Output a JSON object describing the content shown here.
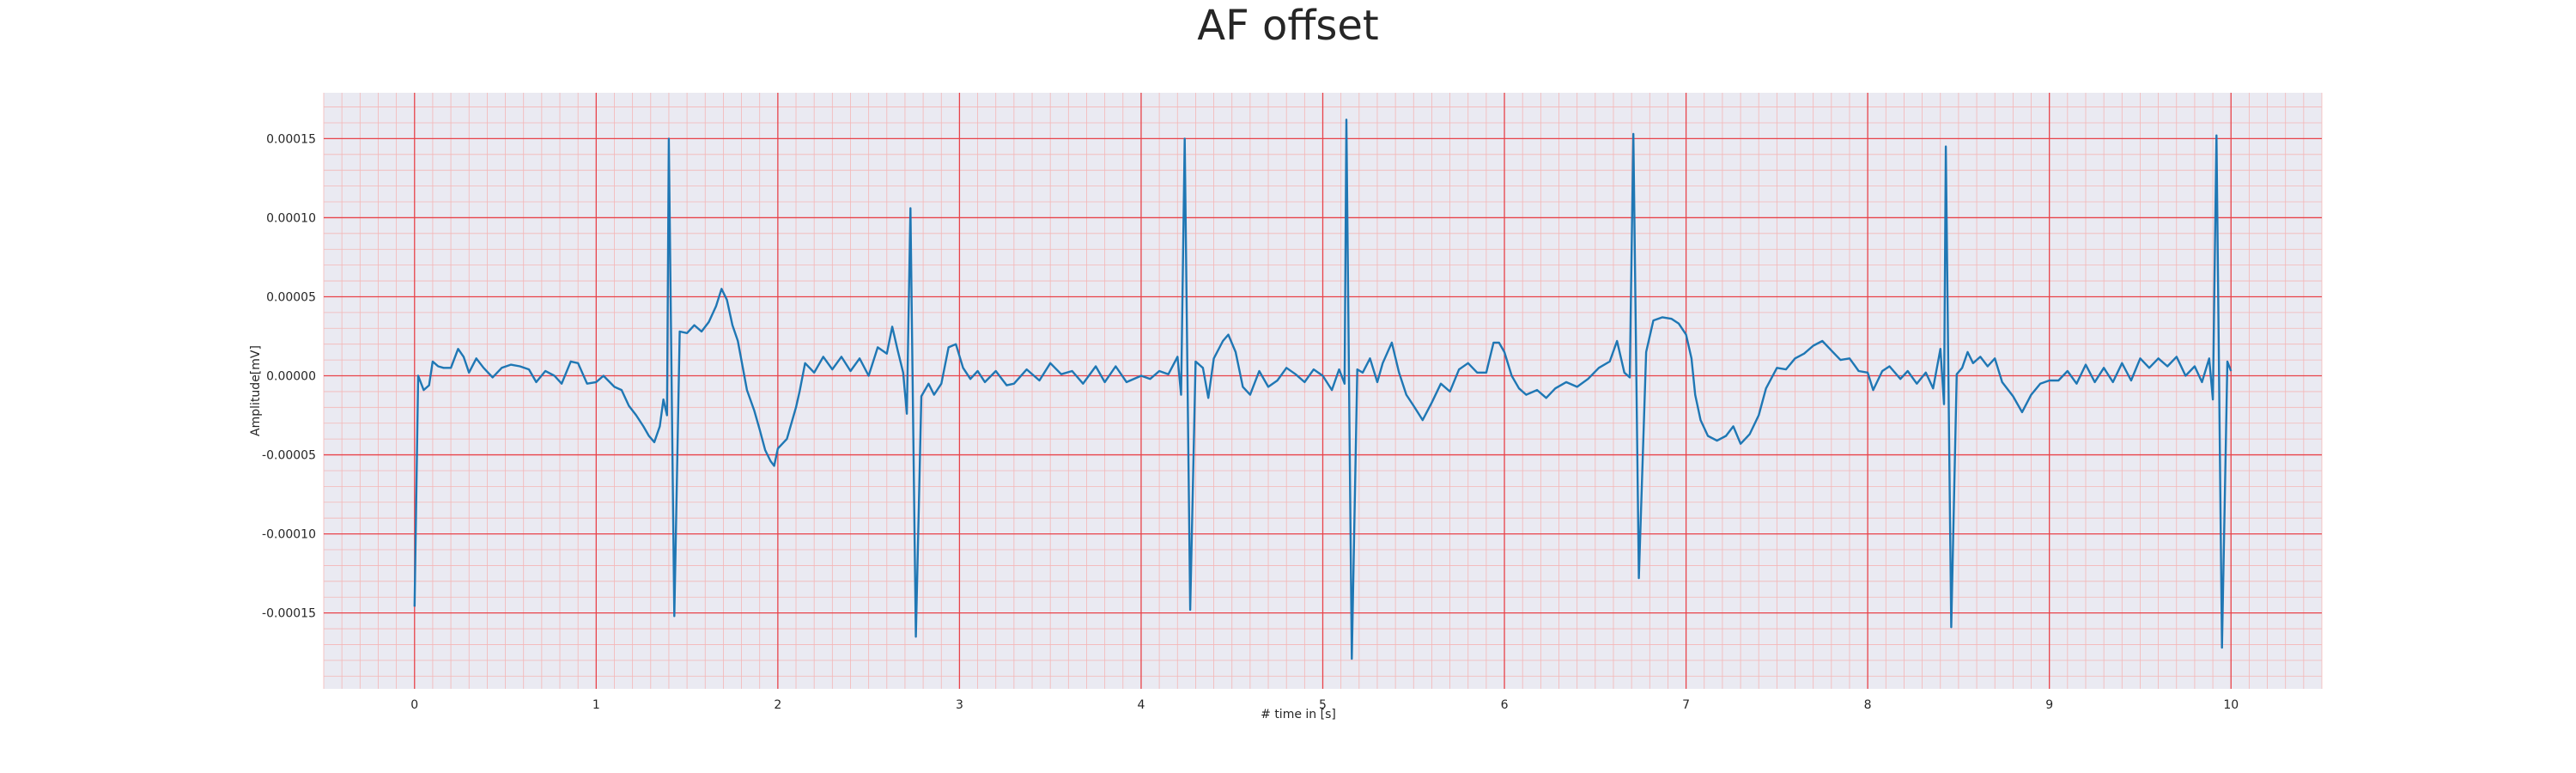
{
  "chart_data": {
    "type": "line",
    "title": "AF offset",
    "xlabel": "# time in [s]",
    "ylabel": "Amplitude[mV]",
    "xlim": [
      -0.5,
      10.5
    ],
    "ylim": [
      -0.000198,
      0.000179
    ],
    "x_ticks": [
      0,
      1,
      2,
      3,
      4,
      5,
      6,
      7,
      8,
      9,
      10
    ],
    "x_tick_labels": [
      "0",
      "1",
      "2",
      "3",
      "4",
      "5",
      "6",
      "7",
      "8",
      "9",
      "10"
    ],
    "y_ticks": [
      0.00015,
      0.0001,
      5e-05,
      0.0,
      -5e-05,
      -0.0001,
      -0.00015
    ],
    "y_tick_labels": [
      "0.00015",
      "0.00010",
      "0.00005",
      "0.00000",
      "-0.00005",
      "-0.00010",
      "-0.00015"
    ],
    "grid": "major and minor, red (ECG paper style)",
    "series": [
      {
        "color": "#1f77b4",
        "points": [
          [
            0.0,
            -0.000146
          ],
          [
            0.02,
            0.0
          ],
          [
            0.05,
            -9e-06
          ],
          [
            0.08,
            -6e-06
          ],
          [
            0.1,
            9e-06
          ],
          [
            0.13,
            6e-06
          ],
          [
            0.16,
            5e-06
          ],
          [
            0.2,
            5e-06
          ],
          [
            0.24,
            1.7e-05
          ],
          [
            0.27,
            1.2e-05
          ],
          [
            0.3,
            2e-06
          ],
          [
            0.34,
            1.1e-05
          ],
          [
            0.38,
            5e-06
          ],
          [
            0.43,
            -1e-06
          ],
          [
            0.48,
            5e-06
          ],
          [
            0.53,
            7e-06
          ],
          [
            0.58,
            6e-06
          ],
          [
            0.63,
            4e-06
          ],
          [
            0.67,
            -4e-06
          ],
          [
            0.72,
            3e-06
          ],
          [
            0.77,
            0.0
          ],
          [
            0.81,
            -5e-06
          ],
          [
            0.86,
            9e-06
          ],
          [
            0.9,
            8e-06
          ],
          [
            0.95,
            -5e-06
          ],
          [
            1.0,
            -4e-06
          ],
          [
            1.04,
            0.0
          ],
          [
            1.1,
            -7e-06
          ],
          [
            1.14,
            -9e-06
          ],
          [
            1.18,
            -1.9e-05
          ],
          [
            1.22,
            -2.5e-05
          ],
          [
            1.26,
            -3.2e-05
          ],
          [
            1.29,
            -3.8e-05
          ],
          [
            1.32,
            -4.2e-05
          ],
          [
            1.35,
            -3.2e-05
          ],
          [
            1.37,
            -1.5e-05
          ],
          [
            1.39,
            -2.5e-05
          ],
          [
            1.4,
            0.00015
          ],
          [
            1.43,
            -0.000152
          ],
          [
            1.46,
            2.8e-05
          ],
          [
            1.5,
            2.7e-05
          ],
          [
            1.54,
            3.2e-05
          ],
          [
            1.58,
            2.8e-05
          ],
          [
            1.62,
            3.4e-05
          ],
          [
            1.66,
            4.4e-05
          ],
          [
            1.69,
            5.5e-05
          ],
          [
            1.72,
            4.8e-05
          ],
          [
            1.75,
            3.2e-05
          ],
          [
            1.78,
            2.2e-05
          ],
          [
            1.83,
            -9e-06
          ],
          [
            1.87,
            -2.2e-05
          ],
          [
            1.9,
            -3.4e-05
          ],
          [
            1.93,
            -4.7e-05
          ],
          [
            1.96,
            -5.4e-05
          ],
          [
            1.98,
            -5.7e-05
          ],
          [
            2.0,
            -4.6e-05
          ],
          [
            2.05,
            -4e-05
          ],
          [
            2.1,
            -2e-05
          ],
          [
            2.12,
            -1e-05
          ],
          [
            2.15,
            8e-06
          ],
          [
            2.2,
            2e-06
          ],
          [
            2.25,
            1.2e-05
          ],
          [
            2.3,
            4e-06
          ],
          [
            2.35,
            1.2e-05
          ],
          [
            2.4,
            3e-06
          ],
          [
            2.45,
            1.1e-05
          ],
          [
            2.5,
            0.0
          ],
          [
            2.55,
            1.8e-05
          ],
          [
            2.6,
            1.4e-05
          ],
          [
            2.63,
            3.1e-05
          ],
          [
            2.66,
            1.6e-05
          ],
          [
            2.69,
            2e-06
          ],
          [
            2.71,
            -2.4e-05
          ],
          [
            2.73,
            0.000106
          ],
          [
            2.76,
            -0.000165
          ],
          [
            2.79,
            -1.3e-05
          ],
          [
            2.83,
            -5e-06
          ],
          [
            2.86,
            -1.2e-05
          ],
          [
            2.9,
            -5e-06
          ],
          [
            2.94,
            1.8e-05
          ],
          [
            2.98,
            2e-05
          ],
          [
            3.02,
            5e-06
          ],
          [
            3.06,
            -2e-06
          ],
          [
            3.1,
            3e-06
          ],
          [
            3.14,
            -4e-06
          ],
          [
            3.2,
            3e-06
          ],
          [
            3.26,
            -6e-06
          ],
          [
            3.3,
            -5e-06
          ],
          [
            3.37,
            4e-06
          ],
          [
            3.44,
            -3e-06
          ],
          [
            3.5,
            8e-06
          ],
          [
            3.56,
            1e-06
          ],
          [
            3.62,
            3e-06
          ],
          [
            3.68,
            -5e-06
          ],
          [
            3.75,
            6e-06
          ],
          [
            3.8,
            -4e-06
          ],
          [
            3.86,
            6e-06
          ],
          [
            3.92,
            -4e-06
          ],
          [
            4.0,
            0.0
          ],
          [
            4.05,
            -2e-06
          ],
          [
            4.1,
            3e-06
          ],
          [
            4.15,
            1e-06
          ],
          [
            4.2,
            1.2e-05
          ],
          [
            4.22,
            -1.2e-05
          ],
          [
            4.24,
            0.00015
          ],
          [
            4.27,
            -0.000148
          ],
          [
            4.3,
            9e-06
          ],
          [
            4.34,
            5e-06
          ],
          [
            4.37,
            -1.4e-05
          ],
          [
            4.4,
            1.1e-05
          ],
          [
            4.45,
            2.2e-05
          ],
          [
            4.48,
            2.6e-05
          ],
          [
            4.52,
            1.5e-05
          ],
          [
            4.56,
            -7e-06
          ],
          [
            4.6,
            -1.2e-05
          ],
          [
            4.65,
            3e-06
          ],
          [
            4.7,
            -7e-06
          ],
          [
            4.75,
            -3e-06
          ],
          [
            4.8,
            5e-06
          ],
          [
            4.85,
            1e-06
          ],
          [
            4.9,
            -4e-06
          ],
          [
            4.95,
            4e-06
          ],
          [
            5.0,
            0.0
          ],
          [
            5.05,
            -9e-06
          ],
          [
            5.09,
            4e-06
          ],
          [
            5.12,
            -5e-06
          ],
          [
            5.13,
            0.000162
          ],
          [
            5.16,
            -0.000179
          ],
          [
            5.19,
            4e-06
          ],
          [
            5.22,
            2e-06
          ],
          [
            5.26,
            1.1e-05
          ],
          [
            5.3,
            -4e-06
          ],
          [
            5.33,
            8e-06
          ],
          [
            5.38,
            2.1e-05
          ],
          [
            5.42,
            2e-06
          ],
          [
            5.46,
            -1.2e-05
          ],
          [
            5.5,
            -1.9e-05
          ],
          [
            5.55,
            -2.8e-05
          ],
          [
            5.6,
            -1.7e-05
          ],
          [
            5.65,
            -5e-06
          ],
          [
            5.7,
            -1e-05
          ],
          [
            5.75,
            4e-06
          ],
          [
            5.8,
            8e-06
          ],
          [
            5.85,
            2e-06
          ],
          [
            5.9,
            2e-06
          ],
          [
            5.94,
            2.1e-05
          ],
          [
            5.97,
            2.1e-05
          ],
          [
            6.0,
            1.5e-05
          ],
          [
            6.04,
            0.0
          ],
          [
            6.08,
            -8e-06
          ],
          [
            6.12,
            -1.2e-05
          ],
          [
            6.18,
            -9e-06
          ],
          [
            6.23,
            -1.4e-05
          ],
          [
            6.28,
            -8e-06
          ],
          [
            6.34,
            -4e-06
          ],
          [
            6.4,
            -7e-06
          ],
          [
            6.46,
            -2e-06
          ],
          [
            6.52,
            5e-06
          ],
          [
            6.58,
            9e-06
          ],
          [
            6.62,
            2.2e-05
          ],
          [
            6.66,
            2e-06
          ],
          [
            6.69,
            -1e-06
          ],
          [
            6.71,
            0.000153
          ],
          [
            6.74,
            -0.000128
          ],
          [
            6.78,
            1.5e-05
          ],
          [
            6.82,
            3.5e-05
          ],
          [
            6.87,
            3.7e-05
          ],
          [
            6.92,
            3.6e-05
          ],
          [
            6.96,
            3.3e-05
          ],
          [
            7.0,
            2.6e-05
          ],
          [
            7.03,
            1.1e-05
          ],
          [
            7.05,
            -1.2e-05
          ],
          [
            7.08,
            -2.8e-05
          ],
          [
            7.12,
            -3.8e-05
          ],
          [
            7.17,
            -4.1e-05
          ],
          [
            7.22,
            -3.8e-05
          ],
          [
            7.26,
            -3.2e-05
          ],
          [
            7.3,
            -4.3e-05
          ],
          [
            7.35,
            -3.7e-05
          ],
          [
            7.4,
            -2.5e-05
          ],
          [
            7.44,
            -8e-06
          ],
          [
            7.5,
            5e-06
          ],
          [
            7.55,
            4e-06
          ],
          [
            7.6,
            1.1e-05
          ],
          [
            7.65,
            1.4e-05
          ],
          [
            7.7,
            1.9e-05
          ],
          [
            7.75,
            2.2e-05
          ],
          [
            7.8,
            1.6e-05
          ],
          [
            7.85,
            1e-05
          ],
          [
            7.9,
            1.1e-05
          ],
          [
            7.95,
            3e-06
          ],
          [
            8.0,
            2e-06
          ],
          [
            8.03,
            -9e-06
          ],
          [
            8.08,
            3e-06
          ],
          [
            8.12,
            6e-06
          ],
          [
            8.18,
            -2e-06
          ],
          [
            8.22,
            3e-06
          ],
          [
            8.27,
            -5e-06
          ],
          [
            8.32,
            2e-06
          ],
          [
            8.36,
            -8e-06
          ],
          [
            8.4,
            1.7e-05
          ],
          [
            8.42,
            -1.8e-05
          ],
          [
            8.43,
            0.000145
          ],
          [
            8.46,
            -0.000159
          ],
          [
            8.49,
            1e-06
          ],
          [
            8.52,
            5e-06
          ],
          [
            8.55,
            1.5e-05
          ],
          [
            8.58,
            8e-06
          ],
          [
            8.62,
            1.2e-05
          ],
          [
            8.66,
            6e-06
          ],
          [
            8.7,
            1.1e-05
          ],
          [
            8.74,
            -4e-06
          ],
          [
            8.8,
            -1.3e-05
          ],
          [
            8.85,
            -2.3e-05
          ],
          [
            8.9,
            -1.2e-05
          ],
          [
            8.95,
            -5e-06
          ],
          [
            9.0,
            -3e-06
          ],
          [
            9.05,
            -3e-06
          ],
          [
            9.1,
            3e-06
          ],
          [
            9.15,
            -5e-06
          ],
          [
            9.2,
            7e-06
          ],
          [
            9.25,
            -4e-06
          ],
          [
            9.3,
            5e-06
          ],
          [
            9.35,
            -4e-06
          ],
          [
            9.4,
            8e-06
          ],
          [
            9.45,
            -3e-06
          ],
          [
            9.5,
            1.1e-05
          ],
          [
            9.55,
            5e-06
          ],
          [
            9.6,
            1.1e-05
          ],
          [
            9.65,
            6e-06
          ],
          [
            9.7,
            1.2e-05
          ],
          [
            9.75,
            0.0
          ],
          [
            9.8,
            6e-06
          ],
          [
            9.84,
            -4e-06
          ],
          [
            9.88,
            1.1e-05
          ],
          [
            9.9,
            -1.5e-05
          ],
          [
            9.92,
            0.000152
          ],
          [
            9.95,
            -0.000172
          ],
          [
            9.98,
            9e-06
          ],
          [
            10.0,
            3e-06
          ]
        ]
      }
    ]
  }
}
